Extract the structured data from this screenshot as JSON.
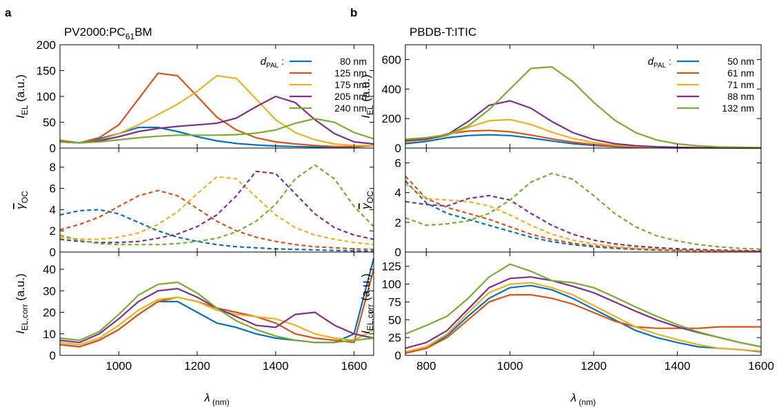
{
  "chart_data": [
    {
      "type": "line",
      "panel": "a",
      "title": [
        "PV2000:PC",
        "61",
        "BM"
      ],
      "ylabel": [
        "I",
        "EL",
        " (a.u.)"
      ],
      "legend_title": [
        "d",
        "PAL",
        " :"
      ],
      "legend": "upper right",
      "x": [
        850,
        900,
        950,
        1000,
        1050,
        1100,
        1150,
        1200,
        1250,
        1300,
        1350,
        1400,
        1450,
        1500,
        1550,
        1600,
        1650
      ],
      "xlim": [
        850,
        1650
      ],
      "xticks": [
        1000,
        1200,
        1400,
        1600
      ],
      "show_xtick_labels": false,
      "ylim": [
        0,
        200
      ],
      "yticks": [
        0,
        50,
        100,
        150,
        200
      ],
      "line_style": "solid",
      "series": [
        {
          "name": "80 nm",
          "color": "#0072bd",
          "values": [
            12,
            10,
            18,
            28,
            40,
            40,
            32,
            22,
            14,
            9,
            6,
            4,
            3,
            2,
            2,
            2,
            5
          ]
        },
        {
          "name": "125 nm",
          "color": "#d95319",
          "values": [
            15,
            10,
            20,
            45,
            95,
            145,
            140,
            100,
            60,
            35,
            20,
            12,
            8,
            5,
            3,
            3,
            5
          ]
        },
        {
          "name": "175 nm",
          "color": "#edb120",
          "values": [
            12,
            10,
            15,
            28,
            45,
            65,
            85,
            110,
            140,
            135,
            95,
            55,
            30,
            16,
            8,
            5,
            5
          ]
        },
        {
          "name": "205 nm",
          "color": "#7e2f8e",
          "values": [
            12,
            10,
            14,
            22,
            32,
            38,
            42,
            45,
            48,
            58,
            80,
            100,
            88,
            55,
            28,
            12,
            8
          ]
        },
        {
          "name": "240 nm",
          "color": "#77ac30",
          "values": [
            12,
            10,
            12,
            16,
            20,
            23,
            25,
            25,
            25,
            26,
            29,
            35,
            48,
            57,
            50,
            30,
            18
          ]
        }
      ]
    },
    {
      "type": "line",
      "ylabel": [
        "γ",
        "OC"
      ],
      "x": [
        850,
        900,
        950,
        1000,
        1050,
        1100,
        1150,
        1200,
        1250,
        1300,
        1350,
        1400,
        1450,
        1500,
        1550,
        1600,
        1650
      ],
      "xlim": [
        850,
        1650
      ],
      "xticks": [
        1000,
        1200,
        1400,
        1600
      ],
      "show_xtick_labels": false,
      "ylim": [
        0,
        9.8
      ],
      "yticks": [
        0,
        2,
        4,
        6,
        8
      ],
      "line_style": "dashed",
      "series": [
        {
          "color": "#0072bd",
          "values": [
            3.5,
            3.9,
            4.0,
            3.6,
            2.8,
            2.0,
            1.4,
            1.0,
            0.7,
            0.5,
            0.4,
            0.3,
            0.25,
            0.2,
            0.15,
            0.12,
            0.1
          ]
        },
        {
          "color": "#d95319",
          "values": [
            2.1,
            2.6,
            3.3,
            4.3,
            5.3,
            5.8,
            5.3,
            4.1,
            2.9,
            2.0,
            1.4,
            1.0,
            0.7,
            0.5,
            0.4,
            0.3,
            0.25
          ]
        },
        {
          "color": "#edb120",
          "values": [
            1.4,
            1.2,
            1.2,
            1.4,
            1.8,
            2.6,
            3.8,
            5.5,
            7.1,
            6.9,
            5.2,
            3.5,
            2.3,
            1.6,
            1.2,
            0.9,
            0.7
          ]
        },
        {
          "color": "#7e2f8e",
          "values": [
            1.2,
            1.0,
            0.9,
            0.9,
            1.0,
            1.3,
            1.7,
            2.4,
            3.5,
            5.3,
            7.6,
            7.4,
            5.5,
            3.6,
            2.3,
            1.6,
            1.2
          ]
        },
        {
          "color": "#77ac30",
          "values": [
            1.6,
            1.1,
            0.8,
            0.7,
            0.7,
            0.7,
            0.8,
            1.0,
            1.3,
            1.9,
            2.9,
            4.5,
            6.9,
            8.2,
            6.9,
            4.3,
            2.4
          ]
        }
      ]
    },
    {
      "type": "line",
      "ylabel": [
        "I",
        "EL,corr",
        " (a.u.)"
      ],
      "xlabel": [
        "λ",
        " (nm)"
      ],
      "x": [
        850,
        900,
        950,
        1000,
        1050,
        1100,
        1150,
        1200,
        1250,
        1300,
        1350,
        1400,
        1450,
        1500,
        1550,
        1600,
        1650
      ],
      "xlim": [
        850,
        1650
      ],
      "xticks": [
        1000,
        1200,
        1400,
        1600
      ],
      "show_xtick_labels": true,
      "ylim": [
        0,
        48
      ],
      "yticks": [
        0,
        10,
        20,
        30,
        40
      ],
      "line_style": "solid",
      "series": [
        {
          "color": "#0072bd",
          "values": [
            5,
            4,
            7,
            12,
            19,
            25,
            25,
            20,
            15,
            13,
            10,
            8,
            7,
            6,
            6,
            10,
            45
          ]
        },
        {
          "color": "#d95319",
          "values": [
            5,
            4,
            7,
            12,
            19,
            25,
            27,
            25,
            22,
            20,
            18,
            15,
            10,
            8,
            7,
            6,
            40
          ]
        },
        {
          "color": "#edb120",
          "values": [
            6,
            5,
            8,
            14,
            21,
            26,
            27,
            25,
            21,
            19,
            18,
            17,
            14,
            10,
            8,
            7,
            12
          ]
        },
        {
          "color": "#7e2f8e",
          "values": [
            7,
            6,
            10,
            17,
            25,
            30,
            31,
            27,
            22,
            18,
            14,
            13,
            19,
            20,
            14,
            10,
            8
          ]
        },
        {
          "color": "#77ac30",
          "values": [
            8,
            7,
            11,
            19,
            28,
            33,
            34,
            29,
            22,
            16,
            12,
            9,
            7,
            6,
            6,
            7,
            8
          ]
        }
      ]
    },
    {
      "type": "line",
      "panel": "b",
      "title": [
        "PBDB-T:ITIC"
      ],
      "ylabel": [
        "I",
        "EL",
        " (a.u.)"
      ],
      "legend_title": [
        "d",
        "PAL",
        " :"
      ],
      "legend": "upper right",
      "x": [
        750,
        800,
        850,
        900,
        950,
        1000,
        1050,
        1100,
        1150,
        1200,
        1250,
        1300,
        1350,
        1400,
        1450,
        1500,
        1550,
        1600
      ],
      "xlim": [
        750,
        1600
      ],
      "xticks": [
        800,
        1000,
        1200,
        1400,
        1600
      ],
      "show_xtick_labels": false,
      "ylim": [
        0,
        700
      ],
      "yticks": [
        0,
        200,
        400,
        600
      ],
      "line_style": "solid",
      "series": [
        {
          "name": "50 nm",
          "color": "#0072bd",
          "values": [
            30,
            45,
            70,
            85,
            90,
            85,
            68,
            48,
            30,
            18,
            10,
            6,
            3,
            2,
            1,
            0,
            0,
            0
          ]
        },
        {
          "name": "61 nm",
          "color": "#d95319",
          "values": [
            40,
            60,
            95,
            115,
            120,
            110,
            88,
            62,
            40,
            24,
            14,
            8,
            4,
            2,
            1,
            1,
            0,
            0
          ]
        },
        {
          "name": "71 nm",
          "color": "#edb120",
          "values": [
            40,
            55,
            85,
            140,
            185,
            193,
            160,
            108,
            65,
            37,
            20,
            11,
            6,
            3,
            2,
            1,
            1,
            0
          ]
        },
        {
          "name": "88 nm",
          "color": "#7e2f8e",
          "values": [
            50,
            60,
            90,
            180,
            290,
            320,
            270,
            180,
            105,
            58,
            30,
            16,
            9,
            5,
            3,
            2,
            1,
            1
          ]
        },
        {
          "name": "132 nm",
          "color": "#77ac30",
          "values": [
            60,
            70,
            90,
            150,
            260,
            400,
            540,
            550,
            450,
            310,
            190,
            105,
            55,
            28,
            15,
            8,
            5,
            3
          ]
        }
      ]
    },
    {
      "type": "line",
      "ylabel": [
        "γ",
        "OC"
      ],
      "x": [
        750,
        800,
        850,
        900,
        950,
        1000,
        1050,
        1100,
        1150,
        1200,
        1250,
        1300,
        1350,
        1400,
        1450,
        1500,
        1550,
        1600
      ],
      "xlim": [
        750,
        1600
      ],
      "xticks": [
        800,
        1000,
        1200,
        1400,
        1600
      ],
      "show_xtick_labels": false,
      "ylim": [
        0,
        7
      ],
      "yticks": [
        0,
        2,
        4,
        6
      ],
      "line_style": "dashed",
      "series": [
        {
          "color": "#0072bd",
          "values": [
            4.8,
            3.3,
            2.6,
            2.2,
            1.8,
            1.4,
            1.0,
            0.7,
            0.5,
            0.35,
            0.25,
            0.18,
            0.13,
            0.1,
            0.08,
            0.06,
            0.05,
            0.04
          ]
        },
        {
          "color": "#d95319",
          "values": [
            5.1,
            3.6,
            3.0,
            2.6,
            2.2,
            1.7,
            1.2,
            0.85,
            0.6,
            0.42,
            0.3,
            0.22,
            0.16,
            0.12,
            0.09,
            0.07,
            0.06,
            0.05
          ]
        },
        {
          "color": "#edb120",
          "values": [
            4.6,
            3.6,
            3.5,
            3.4,
            3.1,
            2.5,
            1.8,
            1.2,
            0.8,
            0.55,
            0.38,
            0.27,
            0.2,
            0.15,
            0.11,
            0.08,
            0.07,
            0.05
          ]
        },
        {
          "color": "#7e2f8e",
          "values": [
            3.4,
            3.2,
            3.1,
            3.6,
            3.8,
            3.5,
            2.6,
            1.8,
            1.2,
            0.8,
            0.55,
            0.4,
            0.3,
            0.22,
            0.17,
            0.13,
            0.1,
            0.08
          ]
        },
        {
          "color": "#77ac30",
          "values": [
            2.3,
            1.8,
            1.9,
            2.1,
            2.6,
            3.5,
            4.7,
            5.3,
            4.9,
            3.8,
            2.6,
            1.7,
            1.1,
            0.75,
            0.5,
            0.35,
            0.25,
            0.2
          ]
        }
      ]
    },
    {
      "type": "line",
      "ylabel": [
        "I",
        "EL,corr",
        " (a.u.)"
      ],
      "xlabel": [
        "λ",
        " (nm)"
      ],
      "x": [
        750,
        800,
        850,
        900,
        950,
        1000,
        1050,
        1100,
        1150,
        1200,
        1250,
        1300,
        1350,
        1400,
        1450,
        1500,
        1550,
        1600
      ],
      "xlim": [
        750,
        1600
      ],
      "xticks": [
        800,
        1000,
        1200,
        1400,
        1600
      ],
      "show_xtick_labels": true,
      "ylim": [
        0,
        145
      ],
      "yticks": [
        0,
        25,
        50,
        75,
        100,
        125
      ],
      "line_style": "solid",
      "series": [
        {
          "color": "#0072bd",
          "values": [
            3,
            10,
            28,
            55,
            80,
            95,
            98,
            92,
            80,
            65,
            50,
            35,
            25,
            18,
            12,
            10,
            8,
            5
          ]
        },
        {
          "color": "#d95319",
          "values": [
            3,
            10,
            25,
            50,
            75,
            85,
            85,
            80,
            72,
            60,
            48,
            40,
            38,
            38,
            38,
            40,
            40,
            40
          ]
        },
        {
          "color": "#edb120",
          "values": [
            5,
            12,
            30,
            60,
            88,
            100,
            102,
            95,
            85,
            70,
            55,
            40,
            30,
            22,
            15,
            10,
            8,
            6
          ]
        },
        {
          "color": "#7e2f8e",
          "values": [
            10,
            18,
            35,
            65,
            95,
            108,
            110,
            105,
            97,
            88,
            75,
            62,
            50,
            40,
            32,
            25,
            18,
            12
          ]
        },
        {
          "color": "#77ac30",
          "values": [
            30,
            42,
            55,
            80,
            110,
            128,
            118,
            105,
            102,
            95,
            82,
            68,
            55,
            43,
            33,
            25,
            18,
            12
          ]
        }
      ]
    }
  ]
}
